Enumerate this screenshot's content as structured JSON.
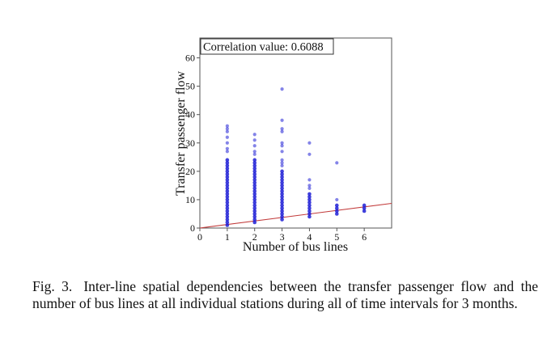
{
  "chart_data": {
    "type": "scatter",
    "xlabel": "Number of bus lines",
    "ylabel": "Transfer passenger flow",
    "xlim": [
      0,
      7
    ],
    "ylim": [
      0,
      67
    ],
    "xticks": [
      0,
      1,
      2,
      3,
      4,
      5,
      6
    ],
    "yticks": [
      0,
      10,
      20,
      30,
      40,
      50,
      60
    ],
    "grid": false,
    "annotation": "Correlation value: 0.6088",
    "annotation_position": "top-left",
    "point_color": "#1f1fd6",
    "line_color": "#c23b3b",
    "regression_line": {
      "x": [
        0,
        7
      ],
      "y": [
        0,
        8.7
      ]
    },
    "points": [
      {
        "x": 1,
        "y_min": 1,
        "y_max": 24,
        "outliers": [
          27,
          28,
          30,
          32,
          34,
          35,
          36
        ]
      },
      {
        "x": 2,
        "y_min": 2,
        "y_max": 24,
        "outliers": [
          26,
          27,
          29,
          31,
          33
        ]
      },
      {
        "x": 3,
        "y_min": 3,
        "y_max": 20,
        "outliers": [
          22,
          23,
          24,
          27,
          29,
          30,
          34,
          35,
          38,
          49
        ]
      },
      {
        "x": 4,
        "y_min": 4,
        "y_max": 12,
        "outliers": [
          14,
          15,
          17,
          26,
          30
        ]
      },
      {
        "x": 5,
        "y_min": 5,
        "y_max": 8,
        "outliers": [
          10,
          23
        ]
      },
      {
        "x": 6,
        "y_min": 6,
        "y_max": 8,
        "outliers": []
      }
    ]
  },
  "caption": {
    "label": "Fig. 3.",
    "text": "Inter-line spatial dependencies between the transfer passenger flow and the number of bus lines at all individual stations during all of time intervals for 3 months."
  }
}
